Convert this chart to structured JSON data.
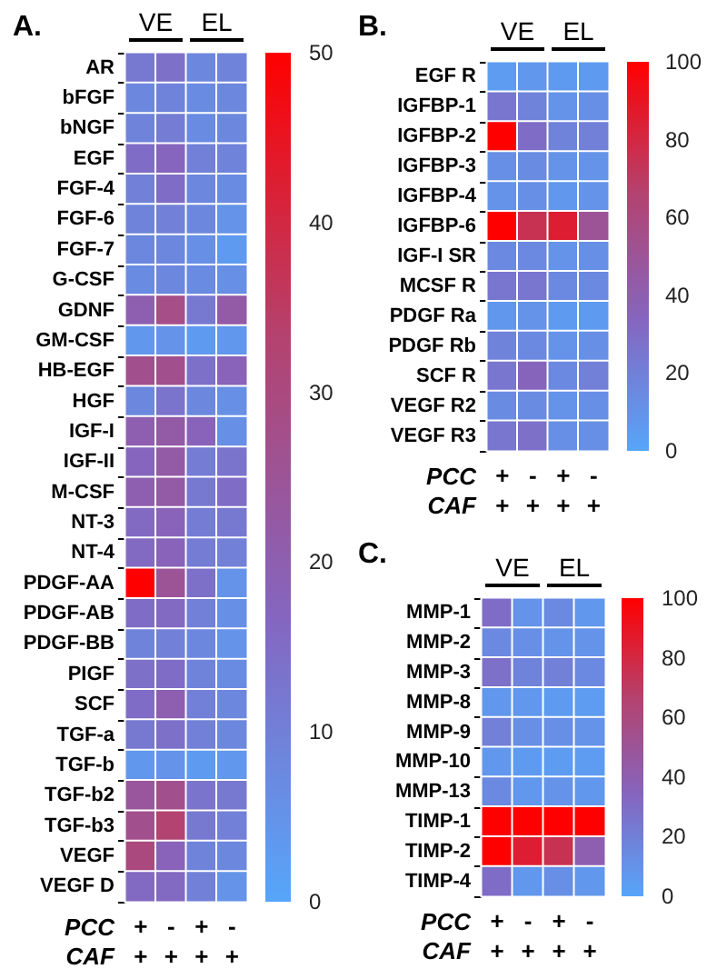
{
  "chart_data": [
    {
      "type": "heatmap",
      "title": "A.",
      "categories": [
        "+",
        "-",
        "+",
        "-"
      ],
      "y_categories": [
        "AR",
        "bFGF",
        "bNGF",
        "EGF",
        "FGF-4",
        "FGF-6",
        "FGF-7",
        "G-CSF",
        "GDNF",
        "GM-CSF",
        "HB-EGF",
        "HGF",
        "IGF-I",
        "IGF-II",
        "M-CSF",
        "NT-3",
        "NT-4",
        "PDGF-AA",
        "PDGF-AB",
        "PDGF-BB",
        "PIGF",
        "SCF",
        "TGF-a",
        "TGF-b",
        "TGF-b2",
        "TGF-b3",
        "VEGF",
        "VEGF D"
      ],
      "cells": [
        [
          12,
          14,
          8,
          9
        ],
        [
          8,
          9,
          7,
          8
        ],
        [
          9,
          11,
          7,
          8
        ],
        [
          15,
          17,
          10,
          9
        ],
        [
          10,
          15,
          8,
          7
        ],
        [
          9,
          10,
          8,
          5
        ],
        [
          8,
          8,
          6,
          3
        ],
        [
          7,
          8,
          7,
          6
        ],
        [
          20,
          28,
          12,
          22
        ],
        [
          4,
          5,
          3,
          4
        ],
        [
          27,
          27,
          14,
          18
        ],
        [
          8,
          13,
          8,
          6
        ],
        [
          20,
          22,
          18,
          6
        ],
        [
          17,
          22,
          11,
          13
        ],
        [
          20,
          22,
          12,
          15
        ],
        [
          16,
          18,
          11,
          12
        ],
        [
          16,
          18,
          11,
          10
        ],
        [
          50,
          25,
          14,
          5
        ],
        [
          15,
          16,
          10,
          6
        ],
        [
          9,
          10,
          8,
          5
        ],
        [
          14,
          15,
          9,
          7
        ],
        [
          15,
          20,
          10,
          8
        ],
        [
          12,
          14,
          10,
          8
        ],
        [
          4,
          5,
          3,
          4
        ],
        [
          24,
          27,
          13,
          12
        ],
        [
          27,
          33,
          12,
          10
        ],
        [
          30,
          18,
          9,
          8
        ],
        [
          16,
          16,
          10,
          5
        ]
      ],
      "clim": [
        0,
        50
      ],
      "cticks": [
        0,
        10,
        20,
        30,
        40,
        50
      ],
      "annotations": [
        "VE",
        "EL",
        "PCC",
        "CAF",
        "+",
        "+",
        "+",
        "+"
      ]
    },
    {
      "type": "heatmap",
      "title": "B.",
      "categories": [
        "+",
        "-",
        "+",
        "-"
      ],
      "y_categories": [
        "EGF R",
        "IGFBP-1",
        "IGFBP-2",
        "IGFBP-3",
        "IGFBP-4",
        "IGFBP-6",
        "IGF-I SR",
        "MCSF R",
        "PDGF Ra",
        "PDGF Rb",
        "SCF R",
        "VEGF R2",
        "VEGF R3"
      ],
      "cells": [
        [
          5,
          8,
          6,
          6
        ],
        [
          25,
          18,
          10,
          12
        ],
        [
          100,
          30,
          18,
          20
        ],
        [
          12,
          14,
          10,
          10
        ],
        [
          10,
          12,
          8,
          10
        ],
        [
          100,
          75,
          85,
          50
        ],
        [
          15,
          15,
          10,
          12
        ],
        [
          25,
          25,
          15,
          15
        ],
        [
          8,
          10,
          6,
          6
        ],
        [
          18,
          15,
          10,
          12
        ],
        [
          25,
          35,
          15,
          20
        ],
        [
          14,
          14,
          10,
          12
        ],
        [
          25,
          28,
          12,
          12
        ]
      ],
      "clim": [
        0,
        100
      ],
      "cticks": [
        0,
        20,
        40,
        60,
        80,
        100
      ],
      "annotations": [
        "VE",
        "EL",
        "PCC",
        "CAF",
        "+",
        "+",
        "+",
        "+"
      ]
    },
    {
      "type": "heatmap",
      "title": "C.",
      "categories": [
        "+",
        "-",
        "+",
        "-"
      ],
      "y_categories": [
        "MMP-1",
        "MMP-2",
        "MMP-3",
        "MMP-8",
        "MMP-9",
        "MMP-10",
        "MMP-13",
        "TIMP-1",
        "TIMP-2",
        "TIMP-4"
      ],
      "cells": [
        [
          30,
          10,
          15,
          8
        ],
        [
          15,
          12,
          10,
          10
        ],
        [
          28,
          18,
          20,
          15
        ],
        [
          8,
          8,
          6,
          5
        ],
        [
          20,
          12,
          12,
          10
        ],
        [
          8,
          6,
          5,
          5
        ],
        [
          15,
          8,
          10,
          8
        ],
        [
          100,
          100,
          100,
          100
        ],
        [
          100,
          85,
          75,
          40
        ],
        [
          30,
          8,
          12,
          8
        ]
      ],
      "clim": [
        0,
        100
      ],
      "cticks": [
        0,
        20,
        40,
        60,
        80,
        100
      ],
      "annotations": [
        "VE",
        "EL",
        "PCC",
        "CAF",
        "+",
        "+",
        "+",
        "+"
      ]
    }
  ]
}
